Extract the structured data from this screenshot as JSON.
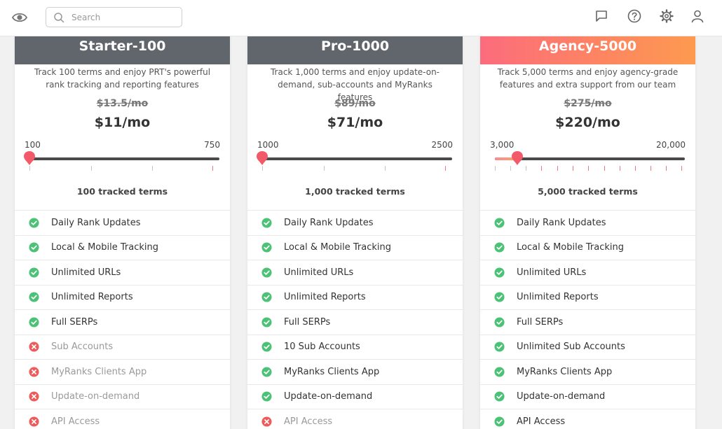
{
  "topbar": {
    "search_placeholder": "Search",
    "icons": [
      "eye-icon",
      "search-icon",
      "chat-icon",
      "help-icon",
      "gear-icon",
      "user-icon"
    ]
  },
  "colors": {
    "header_gray": "#61656c",
    "agency_gradient_start": "#fb6c7c",
    "agency_gradient_end": "#fd9a50",
    "check_green": "#4cc277",
    "cross_red": "#ef5a5a",
    "slider_thumb": "#f25a6a"
  },
  "plans": [
    {
      "name": "Starter-100",
      "description": "Track 100 terms and enjoy PRT's powerful rank tracking and reporting features",
      "old_price": "$13.5/mo",
      "price": "$11/mo",
      "slider": {
        "min_label": "100",
        "max_label": "750",
        "level": 0
      },
      "tracked_terms": "100 tracked terms",
      "features": [
        {
          "label": "Daily Rank Updates",
          "included": true
        },
        {
          "label": "Local & Mobile Tracking",
          "included": true
        },
        {
          "label": "Unlimited URLs",
          "included": true
        },
        {
          "label": "Unlimited Reports",
          "included": true
        },
        {
          "label": "Full SERPs",
          "included": true
        },
        {
          "label": "Sub Accounts",
          "included": false
        },
        {
          "label": "MyRanks Clients App",
          "included": false
        },
        {
          "label": "Update-on-demand",
          "included": false
        },
        {
          "label": "API Access",
          "included": false
        }
      ]
    },
    {
      "name": "Pro-1000",
      "description": "Track 1,000 terms and enjoy update-on-demand, sub-accounts and MyRanks features",
      "old_price": "$89/mo",
      "price": "$71/mo",
      "slider": {
        "min_label": "1000",
        "max_label": "2500",
        "level": 0
      },
      "tracked_terms": "1,000 tracked terms",
      "features": [
        {
          "label": "Daily Rank Updates",
          "included": true
        },
        {
          "label": "Local & Mobile Tracking",
          "included": true
        },
        {
          "label": "Unlimited URLs",
          "included": true
        },
        {
          "label": "Unlimited Reports",
          "included": true
        },
        {
          "label": "Full SERPs",
          "included": true
        },
        {
          "label": "10 Sub Accounts",
          "included": true
        },
        {
          "label": "MyRanks Clients App",
          "included": true
        },
        {
          "label": "Update-on-demand",
          "included": true
        },
        {
          "label": "API Access",
          "included": false
        }
      ]
    },
    {
      "name": "Agency-5000",
      "description": "Track 5,000 terms and enjoy agency-grade features and extra support from our team",
      "old_price": "$275/mo",
      "price": "$220/mo",
      "slider": {
        "min_label": "3,000",
        "max_label": "20,000",
        "level": 0.118
      },
      "tracked_terms": "5,000 tracked terms",
      "features": [
        {
          "label": "Daily Rank Updates",
          "included": true
        },
        {
          "label": "Local & Mobile Tracking",
          "included": true
        },
        {
          "label": "Unlimited URLs",
          "included": true
        },
        {
          "label": "Unlimited Reports",
          "included": true
        },
        {
          "label": "Full SERPs",
          "included": true
        },
        {
          "label": "Unlimited Sub Accounts",
          "included": true
        },
        {
          "label": "MyRanks Clients App",
          "included": true
        },
        {
          "label": "Update-on-demand",
          "included": true
        },
        {
          "label": "API Access",
          "included": true
        }
      ]
    }
  ]
}
